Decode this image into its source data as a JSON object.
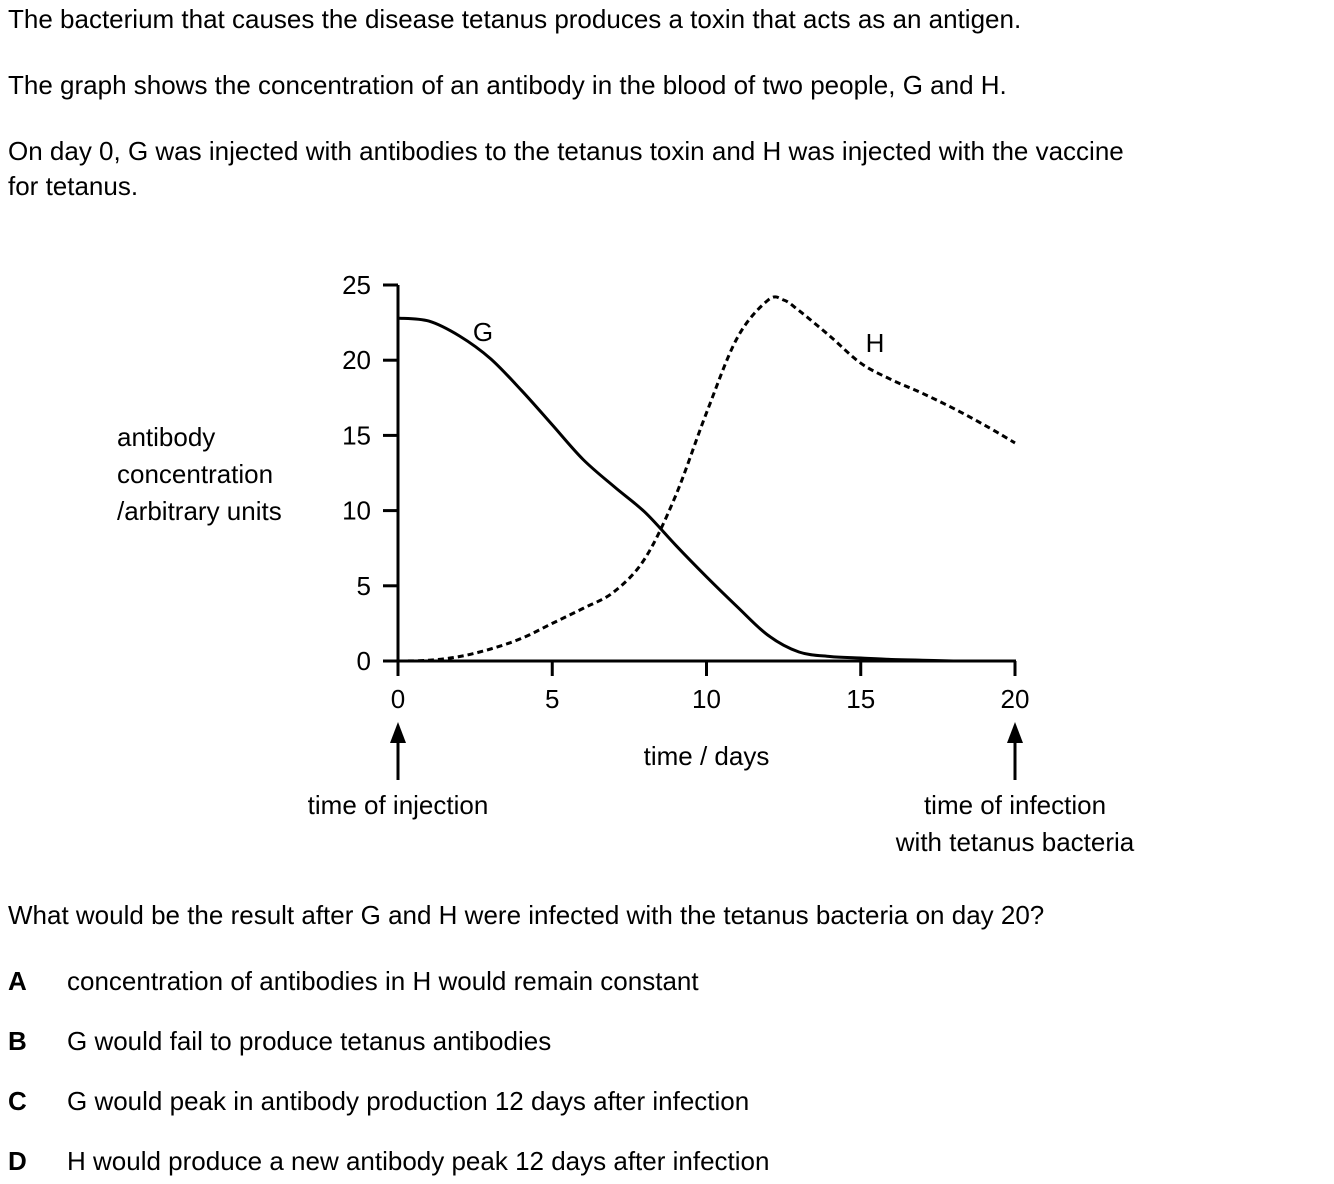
{
  "intro": {
    "line1": "The bacterium that causes the disease tetanus produces a toxin that acts as an antigen.",
    "line2": "The graph shows the concentration of an antibody in the blood of two people, G and H.",
    "line3a": "On day 0, G was injected with antibodies to the tetanus toxin and H was injected with the vaccine",
    "line3b": "for tetanus."
  },
  "chart_data": {
    "type": "line",
    "ylabel_lines": [
      "antibody",
      "concentration",
      "/arbitrary units"
    ],
    "xlabel": "time / days",
    "xlim": [
      0,
      20
    ],
    "ylim": [
      0,
      25
    ],
    "x_ticks": [
      "0",
      "5",
      "10",
      "15",
      "20"
    ],
    "y_ticks": [
      "0",
      "5",
      "10",
      "15",
      "20",
      "25"
    ],
    "series": [
      {
        "name": "G",
        "style": "solid",
        "x": [
          0,
          1,
          2,
          3,
          4,
          5,
          6,
          7,
          8,
          9,
          10,
          11,
          12,
          13,
          14,
          15,
          16,
          17,
          18
        ],
        "y": [
          22.8,
          22.6,
          21.6,
          20.1,
          18,
          15.7,
          13.4,
          11.6,
          9.9,
          7.7,
          5.6,
          3.6,
          1.7,
          0.6,
          0.3,
          0.2,
          0.1,
          0.05,
          0
        ]
      },
      {
        "name": "H",
        "style": "dashed",
        "x": [
          0,
          1,
          2,
          3,
          4,
          5,
          6,
          7,
          8,
          9,
          10,
          11,
          12,
          12.5,
          13,
          14,
          15,
          16,
          17,
          18,
          19,
          20
        ],
        "y": [
          0,
          0.05,
          0.3,
          0.8,
          1.5,
          2.5,
          3.5,
          4.6,
          6.8,
          11,
          16.5,
          21.5,
          24,
          24,
          23.3,
          21.6,
          19.8,
          18.7,
          17.8,
          16.8,
          15.7,
          14.5
        ]
      }
    ],
    "arrows": [
      {
        "x": 0,
        "label_lines": [
          "time of injection"
        ]
      },
      {
        "x": 20,
        "label_lines": [
          "time of infection",
          "with tetanus bacteria"
        ]
      }
    ]
  },
  "question": "What would be the result after G and H were infected with the tetanus bacteria on day 20?",
  "options": [
    {
      "letter": "A",
      "text": "concentration of antibodies in H would remain constant"
    },
    {
      "letter": "B",
      "text": "G would fail to produce tetanus antibodies"
    },
    {
      "letter": "C",
      "text": "G would peak in antibody production 12 days after infection"
    },
    {
      "letter": "D",
      "text": "H would produce a new antibody peak 12 days after infection"
    }
  ]
}
